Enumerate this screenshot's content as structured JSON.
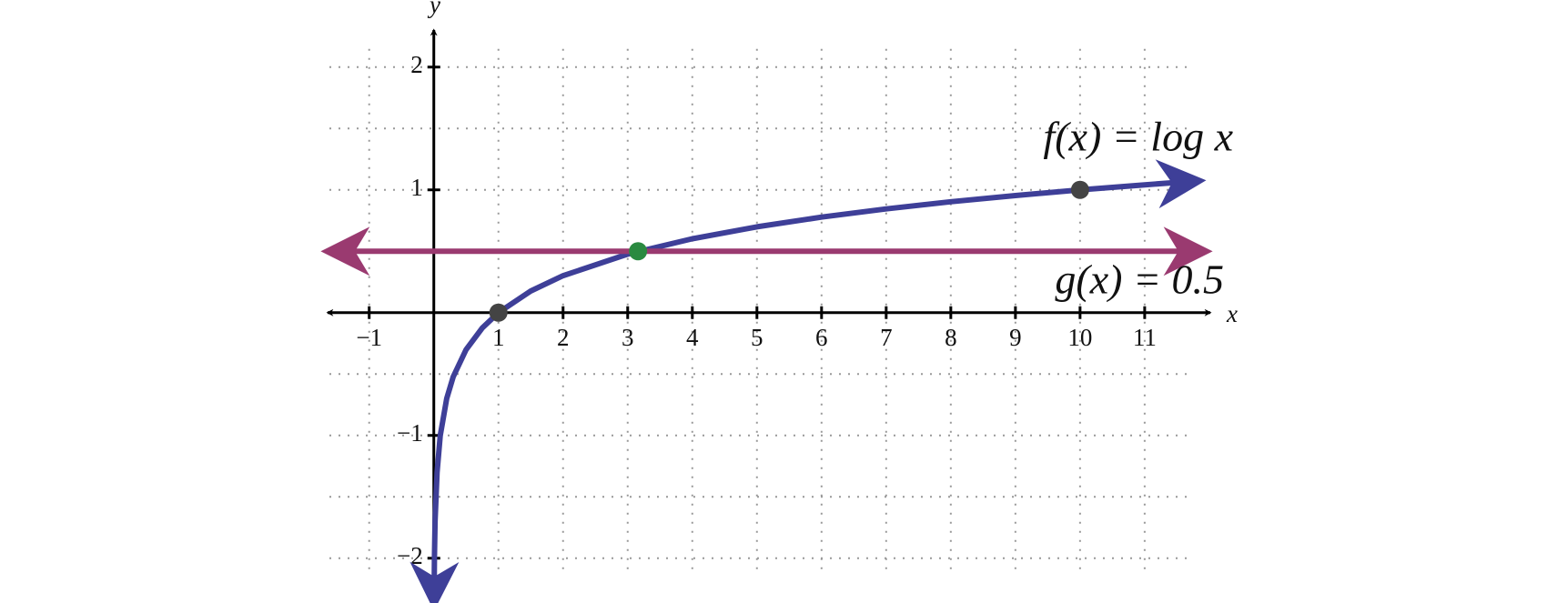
{
  "chart_data": {
    "type": "line",
    "xlabel": "x",
    "ylabel": "y",
    "xlim": [
      -1.7,
      12.1
    ],
    "ylim": [
      -2.35,
      2.45
    ],
    "xticks": [
      {
        "value": -1,
        "label": "−1"
      },
      1,
      2,
      3,
      4,
      5,
      6,
      7,
      8,
      9,
      10,
      11
    ],
    "yticks": [
      {
        "value": -2,
        "label": "−2"
      },
      {
        "value": -1,
        "label": "−1"
      },
      1,
      2
    ],
    "xgrid": [
      -1,
      0,
      1,
      2,
      3,
      4,
      5,
      6,
      7,
      8,
      9,
      10,
      11
    ],
    "ygrid": [
      -2,
      -1.5,
      -1,
      -0.5,
      0,
      0.5,
      1,
      1.5,
      2
    ],
    "grid": true,
    "series": [
      {
        "name": "f(x) = log x",
        "color": "#3e3f98",
        "x": [
          0.0045,
          0.01,
          0.02,
          0.05,
          0.1,
          0.2,
          0.3,
          0.5,
          0.75,
          1,
          1.5,
          2,
          3,
          4,
          5,
          6,
          7,
          8,
          9,
          10,
          11,
          11.8
        ],
        "values": [
          -2.35,
          -2,
          -1.699,
          -1.301,
          -1,
          -0.699,
          -0.523,
          -0.301,
          -0.125,
          0,
          0.176,
          0.301,
          0.477,
          0.602,
          0.699,
          0.778,
          0.845,
          0.903,
          0.954,
          1,
          1.041,
          1.072
        ]
      },
      {
        "name": "g(x) = 0.5",
        "color": "#9a3a70",
        "x": [
          -1.6,
          11.9
        ],
        "values": [
          0.5,
          0.5
        ]
      }
    ],
    "points": {
      "x": [
        1,
        3.16,
        10
      ],
      "values": [
        0,
        0.5,
        1
      ],
      "colors": [
        "#444444",
        "#2a8a40",
        "#444444"
      ]
    }
  }
}
